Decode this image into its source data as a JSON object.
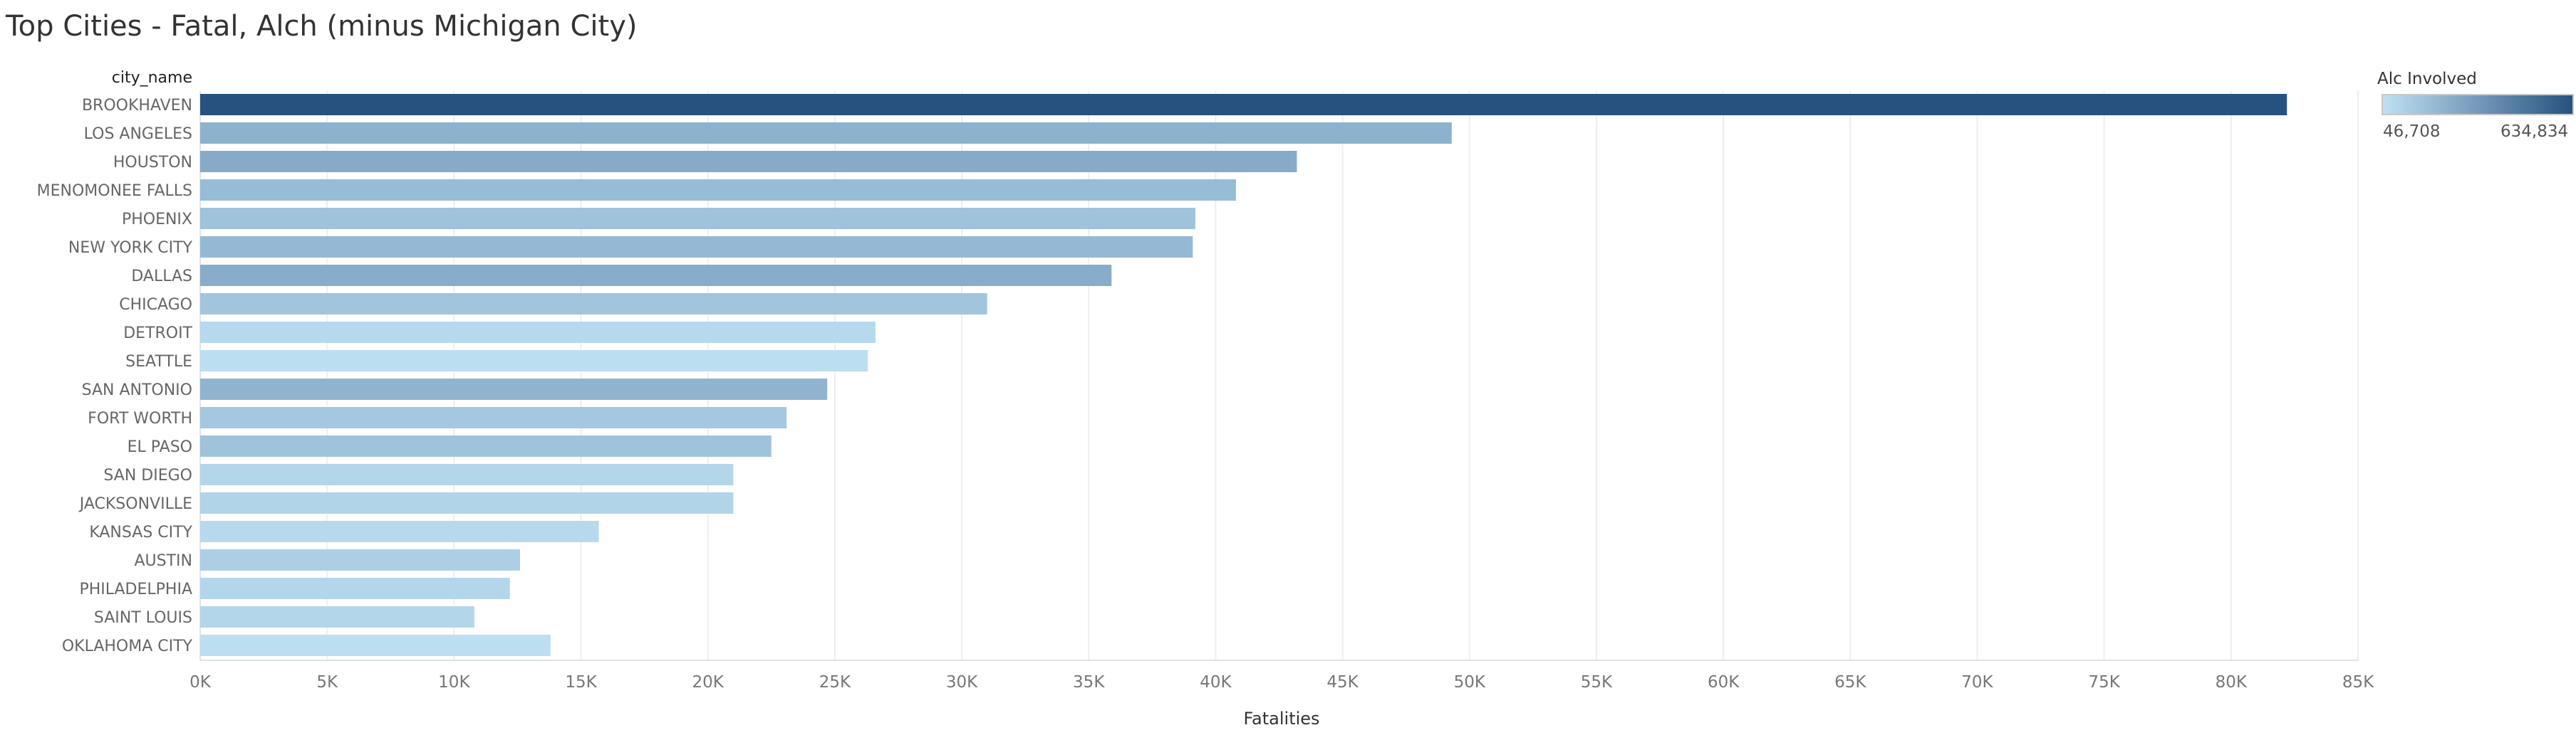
{
  "title": "Top Cities - Fatal, Alch (minus Michigan City)",
  "chart_data": {
    "type": "bar",
    "orientation": "horizontal",
    "row_header": "city_name",
    "xlabel": "Fatalities",
    "xlim": [
      0,
      85000
    ],
    "x_ticks": [
      {
        "value": 0,
        "label": "0K"
      },
      {
        "value": 5000,
        "label": "5K"
      },
      {
        "value": 10000,
        "label": "10K"
      },
      {
        "value": 15000,
        "label": "15K"
      },
      {
        "value": 20000,
        "label": "20K"
      },
      {
        "value": 25000,
        "label": "25K"
      },
      {
        "value": 30000,
        "label": "30K"
      },
      {
        "value": 35000,
        "label": "35K"
      },
      {
        "value": 40000,
        "label": "40K"
      },
      {
        "value": 45000,
        "label": "45K"
      },
      {
        "value": 50000,
        "label": "50K"
      },
      {
        "value": 55000,
        "label": "55K"
      },
      {
        "value": 60000,
        "label": "60K"
      },
      {
        "value": 65000,
        "label": "65K"
      },
      {
        "value": 70000,
        "label": "70K"
      },
      {
        "value": 75000,
        "label": "75K"
      },
      {
        "value": 80000,
        "label": "80K"
      },
      {
        "value": 85000,
        "label": "85K"
      }
    ],
    "grid": "vertical",
    "color_legend": {
      "title": "Alc Involved",
      "min_label": "46,708",
      "max_label": "634,834",
      "min_value": 46708,
      "max_value": 634834,
      "min_color": "#bfe1f4",
      "max_color": "#27527f",
      "placement": "top-right"
    },
    "bars": [
      {
        "city": "BROOKHAVEN",
        "fatalities": 82200,
        "alc_involved": 634834
      },
      {
        "city": "LOS ANGELES",
        "fatalities": 49300,
        "alc_involved": 240000
      },
      {
        "city": "HOUSTON",
        "fatalities": 43200,
        "alc_involved": 270000
      },
      {
        "city": "MENOMONEE FALLS",
        "fatalities": 40800,
        "alc_involved": 200000
      },
      {
        "city": "PHOENIX",
        "fatalities": 39200,
        "alc_involved": 170000
      },
      {
        "city": "NEW YORK CITY",
        "fatalities": 39100,
        "alc_involved": 210000
      },
      {
        "city": "DALLAS",
        "fatalities": 35900,
        "alc_involved": 260000
      },
      {
        "city": "CHICAGO",
        "fatalities": 31000,
        "alc_involved": 160000
      },
      {
        "city": "DETROIT",
        "fatalities": 26600,
        "alc_involved": 80000
      },
      {
        "city": "SEATTLE",
        "fatalities": 26300,
        "alc_involved": 60000
      },
      {
        "city": "SAN ANTONIO",
        "fatalities": 24700,
        "alc_involved": 230000
      },
      {
        "city": "FORT WORTH",
        "fatalities": 23100,
        "alc_involved": 150000
      },
      {
        "city": "EL PASO",
        "fatalities": 22500,
        "alc_involved": 170000
      },
      {
        "city": "SAN DIEGO",
        "fatalities": 21000,
        "alc_involved": 90000
      },
      {
        "city": "JACKSONVILLE",
        "fatalities": 21000,
        "alc_involved": 100000
      },
      {
        "city": "KANSAS CITY",
        "fatalities": 15700,
        "alc_involved": 80000
      },
      {
        "city": "AUSTIN",
        "fatalities": 12600,
        "alc_involved": 120000
      },
      {
        "city": "PHILADELPHIA",
        "fatalities": 12200,
        "alc_involved": 90000
      },
      {
        "city": "SAINT LOUIS",
        "fatalities": 10800,
        "alc_involved": 90000
      },
      {
        "city": "OKLAHOMA CITY",
        "fatalities": 13800,
        "alc_involved": 60000
      }
    ]
  }
}
